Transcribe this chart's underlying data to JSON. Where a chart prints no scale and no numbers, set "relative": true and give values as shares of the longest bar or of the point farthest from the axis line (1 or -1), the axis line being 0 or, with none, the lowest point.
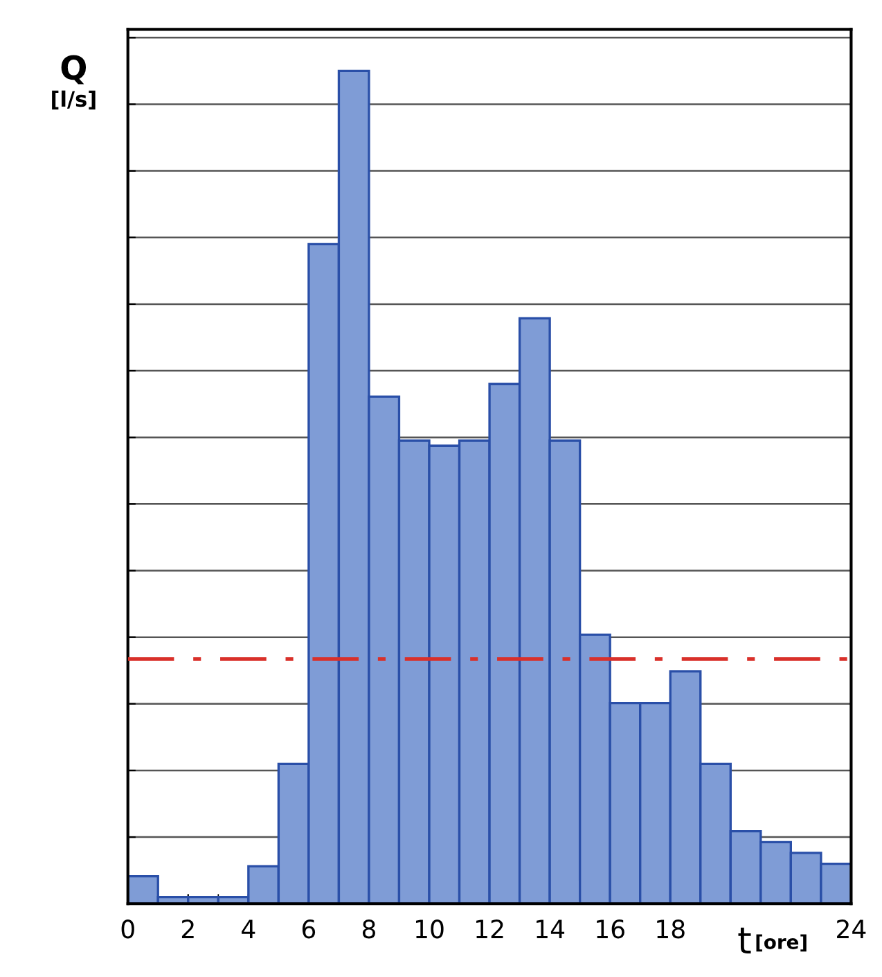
{
  "chart_data": {
    "type": "bar",
    "relative": true,
    "xlabel": "t [ore]",
    "ylabel": "Q [l/s]",
    "x": [
      0.5,
      1.5,
      2.5,
      3.5,
      4.5,
      5.5,
      6.5,
      7.5,
      8.5,
      9.5,
      10.5,
      11.5,
      12.5,
      13.5,
      14.5,
      15.5,
      16.5,
      17.5,
      18.5,
      19.5,
      20.5,
      21.5,
      22.5,
      23.5
    ],
    "values": [
      0.033,
      0.008,
      0.008,
      0.008,
      0.045,
      0.168,
      0.792,
      1,
      0.609,
      0.556,
      0.55,
      0.556,
      0.624,
      0.703,
      0.556,
      0.323,
      0.241,
      0.241,
      0.279,
      0.168,
      0.087,
      0.074,
      0.061,
      0.048
    ],
    "color": "#7f9cd6",
    "xlim": [
      0,
      24
    ],
    "xticks": [
      0,
      2,
      4,
      6,
      8,
      10,
      12,
      14,
      16,
      18,
      {
        "value": 20,
        "label": null
      },
      {
        "value": 22,
        "label": null
      },
      24
    ],
    "ref_lines": [
      {
        "axis": "y",
        "value": 0.294,
        "label": null,
        "color": "#d9302a",
        "line_style": "dashdot"
      }
    ],
    "grid": "y",
    "tick_labels": "x"
  }
}
